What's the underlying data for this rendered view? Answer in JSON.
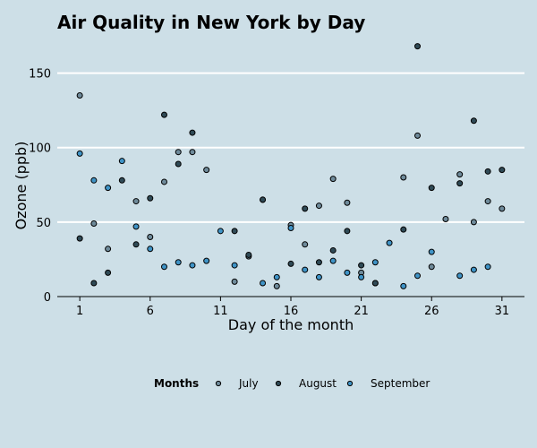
{
  "chart_data": {
    "type": "scatter",
    "title": "Air Quality in New York by Day",
    "xlabel": "Day of the month",
    "ylabel": "Ozone (ppb)",
    "xlim": [
      -0.6,
      32.6
    ],
    "ylim": [
      0,
      175
    ],
    "xticks": [
      1,
      6,
      11,
      16,
      21,
      26,
      31
    ],
    "yticks": [
      0,
      50,
      100,
      150
    ],
    "grid": "horizontal",
    "legend": {
      "title": "Months",
      "placement": "bottom"
    },
    "series": [
      {
        "name": "July",
        "color": "#6e8a9a",
        "x": [
          1,
          2,
          3,
          5,
          6,
          7,
          8,
          9,
          10,
          12,
          13,
          14,
          15,
          16,
          17,
          18,
          19,
          20,
          21,
          22,
          24,
          25,
          26,
          27,
          28,
          29,
          30,
          31
        ],
        "y": [
          135,
          49,
          32,
          64,
          40,
          77,
          97,
          97,
          85,
          10,
          27,
          65,
          7,
          48,
          35,
          61,
          79,
          63,
          16,
          9,
          80,
          108,
          20,
          52,
          82,
          50,
          64,
          59
        ]
      },
      {
        "name": "August",
        "color": "#2f4a56",
        "x": [
          1,
          2,
          3,
          4,
          5,
          6,
          7,
          8,
          9,
          12,
          13,
          14,
          16,
          17,
          18,
          19,
          20,
          21,
          22,
          24,
          25,
          26,
          28,
          29,
          30,
          31
        ],
        "y": [
          39,
          9,
          16,
          78,
          35,
          66,
          122,
          89,
          110,
          44,
          28,
          65,
          22,
          59,
          23,
          31,
          44,
          21,
          9,
          45,
          168,
          73,
          76,
          118,
          84,
          85
        ]
      },
      {
        "name": "September",
        "color": "#3f93c6",
        "x": [
          1,
          2,
          3,
          4,
          5,
          6,
          7,
          8,
          9,
          10,
          11,
          12,
          14,
          15,
          16,
          17,
          18,
          19,
          20,
          21,
          22,
          23,
          24,
          25,
          26,
          28,
          29,
          30
        ],
        "y": [
          96,
          78,
          73,
          91,
          47,
          32,
          20,
          23,
          21,
          24,
          44,
          21,
          9,
          13,
          46,
          18,
          13,
          24,
          16,
          13,
          23,
          36,
          7,
          14,
          30,
          14,
          18,
          20
        ]
      }
    ]
  }
}
